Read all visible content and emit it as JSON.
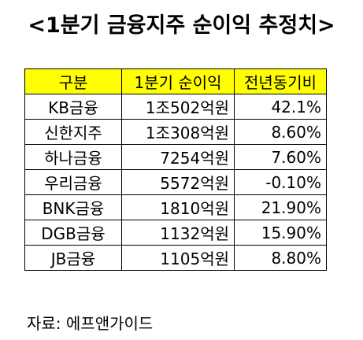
{
  "title": "<1분기 금융지주 순이익 추정치>",
  "table": {
    "headers": [
      "구분",
      "1분기 순이익",
      "전년동기비"
    ],
    "rows": [
      {
        "name": "KB금융",
        "profit": "1조502억원",
        "yoy": "42.1%"
      },
      {
        "name": "신한지주",
        "profit": "1조308억원",
        "yoy": "8.60%"
      },
      {
        "name": "하나금융",
        "profit": "7254억원",
        "yoy": "7.60%"
      },
      {
        "name": "우리금융",
        "profit": "5572억원",
        "yoy": "-0.10%"
      },
      {
        "name": "BNK금융",
        "profit": "1810억원",
        "yoy": "21.90%"
      },
      {
        "name": "DGB금융",
        "profit": "1132억원",
        "yoy": "15.90%"
      },
      {
        "name": "JB금융",
        "profit": "1105억원",
        "yoy": "8.80%"
      }
    ],
    "header_color": "#ffff00"
  },
  "source": "자료: 에프앤가이드"
}
